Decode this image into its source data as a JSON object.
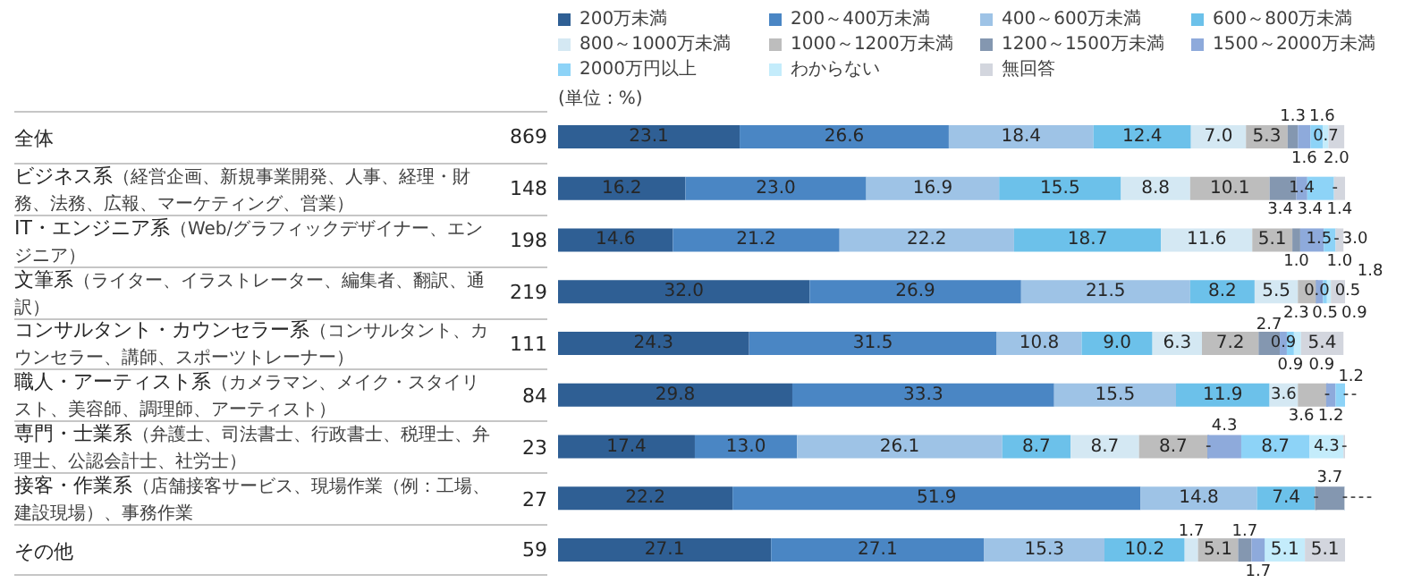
{
  "chart_data": {
    "type": "bar",
    "orientation": "horizontal",
    "stacked": true,
    "legend": "top",
    "tick_labels": "y",
    "annotations": [
      "(単位：%)"
    ],
    "categories": [
      "全体",
      "ビジネス系\n（経営企画、新規事業開発、人事、経理・財務、法務、広報、マーケティング、営業）",
      "IT・エンジニア系\n（Web/グラフィックデザイナー、エンジニア）",
      "文筆系\n（ライター、イラストレーター、編集者、翻訳、通訳）",
      "コンサルタント・カウンセラー系\n（コンサルタント、カウンセラー、講師、スポーツトレーナー）",
      "職人・アーティスト系\n（カメラマン、メイク・スタイリスト、美容師、調理師、アーティスト）",
      "専門・士業系\n（弁護士、司法書士、行政書士、税理士、弁理士、公認会計士、社労士）",
      "接客・作業系\n（店舗接客サービス、現場作業（例：工場、建設現場）、事務作業",
      "その他"
    ],
    "y2_categories": [
      "869",
      "148",
      "198",
      "219",
      "111",
      "84",
      "23",
      "27",
      "59"
    ],
    "series": [
      {
        "name": "200万未満",
        "color": "#2f5f94",
        "values": [
          23.1,
          16.2,
          14.6,
          32.0,
          24.3,
          29.8,
          17.4,
          22.2,
          27.1
        ],
        "value_labels": [
          "23.1",
          "16.2",
          "14.6",
          "32.0",
          "24.3",
          "29.8",
          "17.4",
          "22.2",
          "27.1"
        ]
      },
      {
        "name": "200～400万未満",
        "color": "#4a86c4",
        "values": [
          26.6,
          23.0,
          21.2,
          26.9,
          31.5,
          33.3,
          13.0,
          51.9,
          27.1
        ],
        "value_labels": [
          "26.6",
          "23.0",
          "21.2",
          "26.9",
          "31.5",
          "33.3",
          "13.0",
          "51.9",
          "27.1"
        ]
      },
      {
        "name": "400～600万未満",
        "color": "#9ec3e6",
        "values": [
          18.4,
          16.9,
          22.2,
          21.5,
          10.8,
          15.5,
          26.1,
          14.8,
          15.3
        ],
        "value_labels": [
          "18.4",
          "16.9",
          "22.2",
          "21.5",
          "10.8",
          "15.5",
          "26.1",
          "14.8",
          "15.3"
        ]
      },
      {
        "name": "600～800万未満",
        "color": "#6cc1ea",
        "values": [
          12.4,
          15.5,
          18.7,
          8.2,
          9.0,
          11.9,
          8.7,
          7.4,
          10.2
        ],
        "value_labels": [
          "12.4",
          "15.5",
          "18.7",
          "8.2",
          "9.0",
          "11.9",
          "8.7",
          "7.4",
          "10.2"
        ]
      },
      {
        "name": "800～1000万未満",
        "color": "#d4e8f3",
        "values": [
          7.0,
          8.8,
          11.6,
          5.5,
          6.3,
          3.6,
          8.7,
          0,
          1.7
        ],
        "value_labels": [
          "7.0",
          "8.8",
          "11.6",
          "5.5",
          "6.3",
          "3.6",
          "8.7",
          "-",
          "1.7"
        ]
      },
      {
        "name": "1000～1200万未満",
        "color": "#bdbdbd",
        "values": [
          5.3,
          10.1,
          5.1,
          2.3,
          7.2,
          3.6,
          8.7,
          0,
          5.1
        ],
        "value_labels": [
          "5.3",
          "10.1",
          "5.1",
          "2.3",
          "7.2",
          "3.6",
          "8.7",
          null,
          "5.1"
        ]
      },
      {
        "name": "1200～1500万未満",
        "color": "#8497b0",
        "values": [
          1.3,
          3.4,
          1.0,
          0.0,
          2.7,
          0,
          0,
          3.7,
          1.7
        ],
        "value_labels": [
          "1.3",
          "3.4",
          "1.0",
          "0.0",
          "2.7",
          "-",
          "-",
          "3.7",
          "1.7"
        ]
      },
      {
        "name": "1500～2000万未満",
        "color": "#8eaadb",
        "values": [
          1.6,
          1.4,
          3.0,
          0.9,
          0.9,
          1.2,
          4.3,
          0,
          1.7
        ],
        "value_labels": [
          "1.6",
          "1.4",
          "3.0",
          "0.9",
          "0.9",
          "1.2",
          "4.3",
          "-",
          "1.7"
        ]
      },
      {
        "name": "2000万円以上",
        "color": "#8dd3f7",
        "values": [
          1.6,
          3.4,
          1.5,
          0.5,
          0.9,
          1.2,
          8.7,
          0,
          0
        ],
        "value_labels": [
          "1.6",
          "3.4",
          "1.5",
          "0.5",
          "0.9",
          "1.2",
          "8.7",
          "-",
          null
        ]
      },
      {
        "name": "わからない",
        "color": "#c4ecfb",
        "values": [
          0.7,
          0,
          0,
          0.5,
          0.9,
          0,
          4.3,
          0,
          5.1
        ],
        "value_labels": [
          "0.7",
          "-",
          "-",
          "0.5",
          "0.9",
          "-",
          "4.3",
          "-",
          "5.1"
        ]
      },
      {
        "name": "無回答",
        "color": "#d3d6de",
        "values": [
          2.0,
          1.4,
          1.0,
          1.8,
          5.4,
          0,
          0,
          0,
          5.1
        ],
        "value_labels": [
          "2.0",
          "1.4",
          "1.0",
          "1.8",
          "5.4",
          "-",
          "-",
          "-",
          "5.1"
        ]
      }
    ]
  }
}
